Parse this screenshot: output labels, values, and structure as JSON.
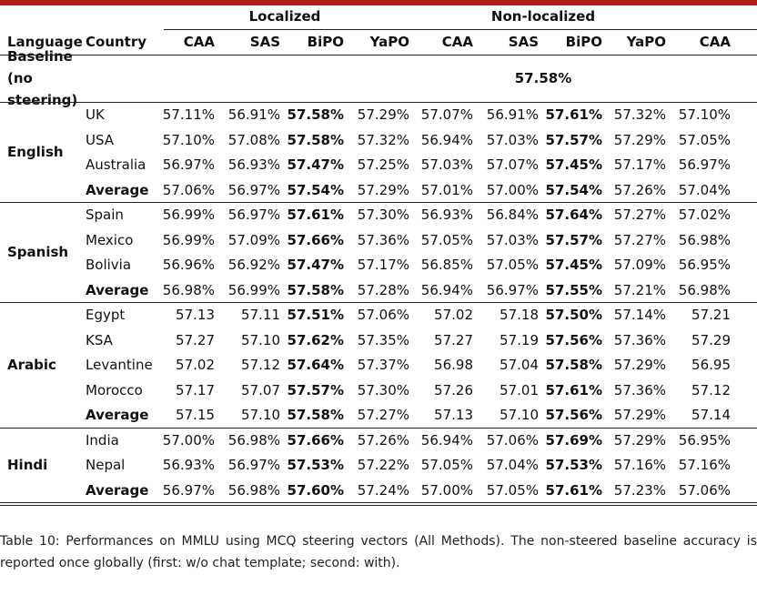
{
  "header": {
    "groups": [
      "Localized",
      "Non-localized"
    ],
    "columns": [
      "Language",
      "Country",
      "CAA",
      "SAS",
      "BiPO",
      "YaPO",
      "CAA",
      "SAS",
      "BiPO",
      "YaPO",
      "CAA"
    ]
  },
  "baseline": {
    "label": "Baseline (no steering)",
    "value": "57.58%"
  },
  "groups": [
    {
      "language": "English",
      "rows": [
        {
          "country": "UK",
          "values": [
            "57.11%",
            "56.91%",
            "57.58%",
            "57.29%",
            "57.07%",
            "56.91%",
            "57.61%",
            "57.32%",
            "57.10%"
          ]
        },
        {
          "country": "USA",
          "values": [
            "57.10%",
            "57.08%",
            "57.58%",
            "57.32%",
            "56.94%",
            "57.03%",
            "57.57%",
            "57.29%",
            "57.05%"
          ]
        },
        {
          "country": "Australia",
          "values": [
            "56.97%",
            "56.93%",
            "57.47%",
            "57.25%",
            "57.03%",
            "57.07%",
            "57.45%",
            "57.17%",
            "56.97%"
          ]
        },
        {
          "country": "Average",
          "values": [
            "57.06%",
            "56.97%",
            "57.54%",
            "57.29%",
            "57.01%",
            "57.00%",
            "57.54%",
            "57.26%",
            "57.04%"
          ]
        }
      ]
    },
    {
      "language": "Spanish",
      "rows": [
        {
          "country": "Spain",
          "values": [
            "56.99%",
            "56.97%",
            "57.61%",
            "57.30%",
            "56.93%",
            "56.84%",
            "57.64%",
            "57.27%",
            "57.02%"
          ]
        },
        {
          "country": "Mexico",
          "values": [
            "56.99%",
            "57.09%",
            "57.66%",
            "57.36%",
            "57.05%",
            "57.03%",
            "57.57%",
            "57.27%",
            "56.98%"
          ]
        },
        {
          "country": "Bolivia",
          "values": [
            "56.96%",
            "56.92%",
            "57.47%",
            "57.17%",
            "56.85%",
            "57.05%",
            "57.45%",
            "57.09%",
            "56.95%"
          ]
        },
        {
          "country": "Average",
          "values": [
            "56.98%",
            "56.99%",
            "57.58%",
            "57.28%",
            "56.94%",
            "56.97%",
            "57.55%",
            "57.21%",
            "56.98%"
          ]
        }
      ]
    },
    {
      "language": "Arabic",
      "rows": [
        {
          "country": "Egypt",
          "values": [
            "57.13",
            "57.11",
            "57.51%",
            "57.06%",
            "57.02",
            "57.18",
            "57.50%",
            "57.14%",
            "57.21"
          ]
        },
        {
          "country": "KSA",
          "values": [
            "57.27",
            "57.10",
            "57.62%",
            "57.35%",
            "57.27",
            "57.19",
            "57.56%",
            "57.36%",
            "57.29"
          ]
        },
        {
          "country": "Levantine",
          "values": [
            "57.02",
            "57.12",
            "57.64%",
            "57.37%",
            "56.98",
            "57.04",
            "57.58%",
            "57.29%",
            "56.95"
          ]
        },
        {
          "country": "Morocco",
          "values": [
            "57.17",
            "57.07",
            "57.57%",
            "57.30%",
            "57.26",
            "57.01",
            "57.61%",
            "57.36%",
            "57.12"
          ]
        },
        {
          "country": "Average",
          "values": [
            "57.15",
            "57.10",
            "57.58%",
            "57.27%",
            "57.13",
            "57.10",
            "57.56%",
            "57.29%",
            "57.14"
          ]
        }
      ]
    },
    {
      "language": "Hindi",
      "rows": [
        {
          "country": "India",
          "values": [
            "57.00%",
            "56.98%",
            "57.66%",
            "57.26%",
            "56.94%",
            "57.06%",
            "57.69%",
            "57.29%",
            "56.95%"
          ]
        },
        {
          "country": "Nepal",
          "values": [
            "56.93%",
            "56.97%",
            "57.53%",
            "57.22%",
            "57.05%",
            "57.04%",
            "57.53%",
            "57.16%",
            "57.16%"
          ]
        },
        {
          "country": "Average",
          "values": [
            "56.97%",
            "56.98%",
            "57.60%",
            "57.24%",
            "57.00%",
            "57.05%",
            "57.61%",
            "57.23%",
            "57.06%"
          ]
        }
      ]
    }
  ],
  "caption": "Table 10: Performances on MMLU using MCQ steering vectors (All Methods). The non-steered baseline accuracy is reported once globally (first: w/o chat template; second: with)."
}
